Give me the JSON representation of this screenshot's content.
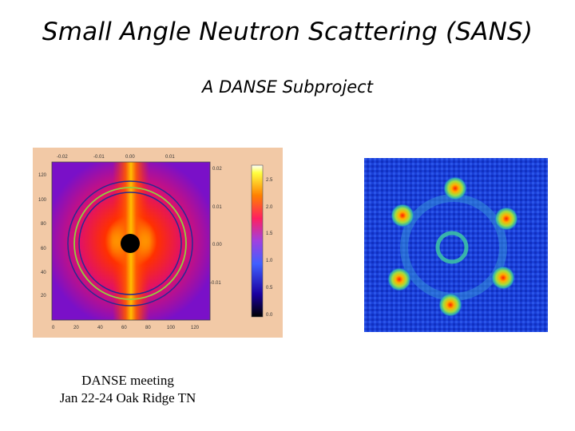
{
  "slide": {
    "title": "Small Angle Neutron Scattering (SANS)",
    "subtitle": "A DANSE Subproject",
    "caption_line1": "DANSE meeting",
    "caption_line2": "Jan 22-24 Oak Ridge TN"
  },
  "left_figure": {
    "top_ticks": [
      "-0.02",
      "-0.01",
      "0.00",
      "0.01"
    ],
    "left_ticks": [
      "120",
      "100",
      "80",
      "60",
      "40",
      "20"
    ],
    "bottom_ticks": [
      "0",
      "20",
      "40",
      "60",
      "80",
      "100",
      "120"
    ],
    "right_ticks": [
      "0.02",
      "0.01",
      "0.00",
      "-0.01"
    ],
    "colorbar_ticks": [
      "2.5",
      "2.0",
      "1.5",
      "1.0",
      "0.5",
      "0.0"
    ]
  },
  "colors": {
    "left_bg": "#f2c9a6",
    "right_bg": "#1a3fd8"
  }
}
